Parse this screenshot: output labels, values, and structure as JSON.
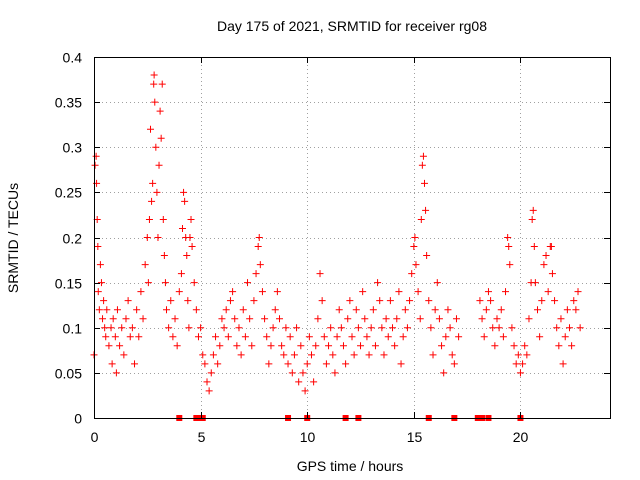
{
  "chart_data": {
    "type": "scatter",
    "title": "Day 175 of 2021, SRMTID for receiver rg08",
    "xlabel": "GPS time / hours",
    "ylabel": "SRMTID / TECUs",
    "xlim": [
      0,
      24.2
    ],
    "ylim": [
      0,
      0.4
    ],
    "x_ticks": [
      0,
      5,
      10,
      15,
      20
    ],
    "x_tick_labels": [
      "0",
      "5",
      "10",
      "15",
      "20"
    ],
    "y_ticks": [
      0,
      0.05,
      0.1,
      0.15,
      0.2,
      0.25,
      0.3,
      0.35,
      0.4
    ],
    "y_tick_labels": [
      "0",
      "0.05",
      "0.1",
      "0.15",
      "0.2",
      "0.25",
      "0.3",
      "0.35",
      "0.4"
    ],
    "grid": true,
    "marker": "plus",
    "series_color": "#ff0000",
    "data_gaps_at_zero": [
      4.0,
      4.8,
      4.95,
      5.1,
      9.1,
      10.0,
      11.8,
      12.4,
      15.7,
      16.9,
      18.0,
      18.1,
      18.2,
      18.5,
      20.0
    ],
    "series": [
      {
        "name": "rg08",
        "points": [
          [
            0.0,
            0.07
          ],
          [
            0.05,
            0.28
          ],
          [
            0.1,
            0.29
          ],
          [
            0.12,
            0.26
          ],
          [
            0.15,
            0.22
          ],
          [
            0.18,
            0.19
          ],
          [
            0.2,
            0.14
          ],
          [
            0.25,
            0.12
          ],
          [
            0.3,
            0.17
          ],
          [
            0.35,
            0.15
          ],
          [
            0.4,
            0.11
          ],
          [
            0.45,
            0.13
          ],
          [
            0.5,
            0.1
          ],
          [
            0.55,
            0.09
          ],
          [
            0.6,
            0.12
          ],
          [
            0.7,
            0.08
          ],
          [
            0.8,
            0.1
          ],
          [
            0.85,
            0.06
          ],
          [
            0.9,
            0.11
          ],
          [
            1.0,
            0.09
          ],
          [
            1.05,
            0.05
          ],
          [
            1.1,
            0.12
          ],
          [
            1.2,
            0.08
          ],
          [
            1.3,
            0.1
          ],
          [
            1.4,
            0.07
          ],
          [
            1.5,
            0.11
          ],
          [
            1.6,
            0.13
          ],
          [
            1.7,
            0.09
          ],
          [
            1.8,
            0.1
          ],
          [
            1.9,
            0.06
          ],
          [
            2.0,
            0.12
          ],
          [
            2.1,
            0.09
          ],
          [
            2.2,
            0.14
          ],
          [
            2.3,
            0.11
          ],
          [
            2.4,
            0.17
          ],
          [
            2.5,
            0.2
          ],
          [
            2.55,
            0.15
          ],
          [
            2.6,
            0.22
          ],
          [
            2.65,
            0.32
          ],
          [
            2.7,
            0.24
          ],
          [
            2.75,
            0.26
          ],
          [
            2.8,
            0.37
          ],
          [
            2.82,
            0.38
          ],
          [
            2.85,
            0.35
          ],
          [
            2.9,
            0.3
          ],
          [
            2.95,
            0.25
          ],
          [
            3.0,
            0.2
          ],
          [
            3.05,
            0.28
          ],
          [
            3.1,
            0.34
          ],
          [
            3.15,
            0.31
          ],
          [
            3.2,
            0.37
          ],
          [
            3.25,
            0.22
          ],
          [
            3.3,
            0.18
          ],
          [
            3.35,
            0.15
          ],
          [
            3.4,
            0.12
          ],
          [
            3.5,
            0.1
          ],
          [
            3.6,
            0.13
          ],
          [
            3.7,
            0.09
          ],
          [
            3.8,
            0.11
          ],
          [
            3.9,
            0.08
          ],
          [
            4.0,
            0.14
          ],
          [
            4.1,
            0.16
          ],
          [
            4.15,
            0.21
          ],
          [
            4.2,
            0.25
          ],
          [
            4.25,
            0.24
          ],
          [
            4.3,
            0.2
          ],
          [
            4.35,
            0.18
          ],
          [
            4.4,
            0.13
          ],
          [
            4.45,
            0.1
          ],
          [
            4.5,
            0.2
          ],
          [
            4.55,
            0.22
          ],
          [
            4.6,
            0.19
          ],
          [
            4.7,
            0.15
          ],
          [
            4.8,
            0.12
          ],
          [
            4.9,
            0.09
          ],
          [
            5.0,
            0.1
          ],
          [
            5.1,
            0.07
          ],
          [
            5.2,
            0.06
          ],
          [
            5.3,
            0.04
          ],
          [
            5.4,
            0.03
          ],
          [
            5.5,
            0.05
          ],
          [
            5.6,
            0.07
          ],
          [
            5.7,
            0.09
          ],
          [
            5.8,
            0.06
          ],
          [
            5.9,
            0.08
          ],
          [
            6.0,
            0.11
          ],
          [
            6.1,
            0.1
          ],
          [
            6.2,
            0.12
          ],
          [
            6.3,
            0.09
          ],
          [
            6.4,
            0.13
          ],
          [
            6.5,
            0.14
          ],
          [
            6.6,
            0.11
          ],
          [
            6.7,
            0.08
          ],
          [
            6.8,
            0.1
          ],
          [
            6.9,
            0.07
          ],
          [
            7.0,
            0.12
          ],
          [
            7.1,
            0.09
          ],
          [
            7.2,
            0.15
          ],
          [
            7.3,
            0.11
          ],
          [
            7.4,
            0.08
          ],
          [
            7.5,
            0.13
          ],
          [
            7.6,
            0.16
          ],
          [
            7.7,
            0.19
          ],
          [
            7.75,
            0.2
          ],
          [
            7.8,
            0.17
          ],
          [
            7.9,
            0.14
          ],
          [
            8.0,
            0.11
          ],
          [
            8.1,
            0.09
          ],
          [
            8.2,
            0.06
          ],
          [
            8.3,
            0.08
          ],
          [
            8.4,
            0.1
          ],
          [
            8.5,
            0.12
          ],
          [
            8.6,
            0.14
          ],
          [
            8.7,
            0.11
          ],
          [
            8.8,
            0.08
          ],
          [
            8.9,
            0.07
          ],
          [
            9.0,
            0.1
          ],
          [
            9.1,
            0.06
          ],
          [
            9.2,
            0.09
          ],
          [
            9.3,
            0.05
          ],
          [
            9.4,
            0.07
          ],
          [
            9.5,
            0.1
          ],
          [
            9.6,
            0.04
          ],
          [
            9.7,
            0.08
          ],
          [
            9.8,
            0.05
          ],
          [
            9.9,
            0.03
          ],
          [
            10.0,
            0.06
          ],
          [
            10.1,
            0.09
          ],
          [
            10.2,
            0.07
          ],
          [
            10.3,
            0.04
          ],
          [
            10.4,
            0.08
          ],
          [
            10.5,
            0.11
          ],
          [
            10.6,
            0.16
          ],
          [
            10.7,
            0.13
          ],
          [
            10.8,
            0.09
          ],
          [
            10.9,
            0.06
          ],
          [
            11.0,
            0.08
          ],
          [
            11.1,
            0.1
          ],
          [
            11.2,
            0.07
          ],
          [
            11.3,
            0.05
          ],
          [
            11.4,
            0.09
          ],
          [
            11.5,
            0.12
          ],
          [
            11.6,
            0.1
          ],
          [
            11.7,
            0.08
          ],
          [
            11.8,
            0.06
          ],
          [
            11.9,
            0.11
          ],
          [
            12.0,
            0.13
          ],
          [
            12.1,
            0.09
          ],
          [
            12.2,
            0.07
          ],
          [
            12.3,
            0.12
          ],
          [
            12.4,
            0.1
          ],
          [
            12.5,
            0.08
          ],
          [
            12.6,
            0.14
          ],
          [
            12.7,
            0.11
          ],
          [
            12.8,
            0.09
          ],
          [
            12.9,
            0.07
          ],
          [
            13.0,
            0.1
          ],
          [
            13.1,
            0.12
          ],
          [
            13.2,
            0.08
          ],
          [
            13.3,
            0.15
          ],
          [
            13.4,
            0.13
          ],
          [
            13.5,
            0.1
          ],
          [
            13.6,
            0.07
          ],
          [
            13.7,
            0.11
          ],
          [
            13.8,
            0.09
          ],
          [
            13.9,
            0.13
          ],
          [
            14.0,
            0.1
          ],
          [
            14.1,
            0.08
          ],
          [
            14.2,
            0.11
          ],
          [
            14.3,
            0.14
          ],
          [
            14.4,
            0.06
          ],
          [
            14.5,
            0.09
          ],
          [
            14.6,
            0.12
          ],
          [
            14.7,
            0.1
          ],
          [
            14.8,
            0.13
          ],
          [
            14.9,
            0.16
          ],
          [
            15.0,
            0.19
          ],
          [
            15.05,
            0.2
          ],
          [
            15.1,
            0.17
          ],
          [
            15.2,
            0.14
          ],
          [
            15.3,
            0.11
          ],
          [
            15.35,
            0.22
          ],
          [
            15.4,
            0.28
          ],
          [
            15.45,
            0.29
          ],
          [
            15.5,
            0.26
          ],
          [
            15.55,
            0.23
          ],
          [
            15.6,
            0.18
          ],
          [
            15.7,
            0.13
          ],
          [
            15.8,
            0.1
          ],
          [
            15.9,
            0.07
          ],
          [
            16.0,
            0.12
          ],
          [
            16.1,
            0.15
          ],
          [
            16.2,
            0.11
          ],
          [
            16.3,
            0.08
          ],
          [
            16.4,
            0.05
          ],
          [
            16.5,
            0.09
          ],
          [
            16.6,
            0.12
          ],
          [
            16.7,
            0.1
          ],
          [
            16.8,
            0.07
          ],
          [
            16.9,
            0.06
          ],
          [
            17.0,
            0.11
          ],
          [
            17.1,
            0.09
          ],
          [
            18.1,
            0.13
          ],
          [
            18.2,
            0.11
          ],
          [
            18.3,
            0.09
          ],
          [
            18.4,
            0.12
          ],
          [
            18.5,
            0.14
          ],
          [
            18.6,
            0.13
          ],
          [
            18.7,
            0.1
          ],
          [
            18.8,
            0.08
          ],
          [
            18.9,
            0.11
          ],
          [
            19.0,
            0.1
          ],
          [
            19.1,
            0.12
          ],
          [
            19.2,
            0.09
          ],
          [
            19.3,
            0.14
          ],
          [
            19.4,
            0.2
          ],
          [
            19.45,
            0.19
          ],
          [
            19.5,
            0.17
          ],
          [
            19.6,
            0.1
          ],
          [
            19.7,
            0.08
          ],
          [
            19.8,
            0.06
          ],
          [
            19.9,
            0.07
          ],
          [
            20.0,
            0.05
          ],
          [
            20.1,
            0.06
          ],
          [
            20.2,
            0.08
          ],
          [
            20.3,
            0.07
          ],
          [
            20.4,
            0.11
          ],
          [
            20.5,
            0.15
          ],
          [
            20.55,
            0.22
          ],
          [
            20.6,
            0.23
          ],
          [
            20.65,
            0.19
          ],
          [
            20.7,
            0.15
          ],
          [
            20.8,
            0.12
          ],
          [
            20.9,
            0.09
          ],
          [
            21.0,
            0.13
          ],
          [
            21.1,
            0.17
          ],
          [
            21.2,
            0.18
          ],
          [
            21.3,
            0.14
          ],
          [
            21.4,
            0.19
          ],
          [
            21.45,
            0.19
          ],
          [
            21.5,
            0.16
          ],
          [
            21.6,
            0.13
          ],
          [
            21.7,
            0.1
          ],
          [
            21.8,
            0.08
          ],
          [
            21.9,
            0.11
          ],
          [
            22.0,
            0.06
          ],
          [
            22.1,
            0.09
          ],
          [
            22.2,
            0.12
          ],
          [
            22.3,
            0.1
          ],
          [
            22.4,
            0.08
          ],
          [
            22.5,
            0.13
          ],
          [
            22.6,
            0.12
          ],
          [
            22.7,
            0.14
          ],
          [
            22.8,
            0.1
          ]
        ]
      }
    ]
  }
}
